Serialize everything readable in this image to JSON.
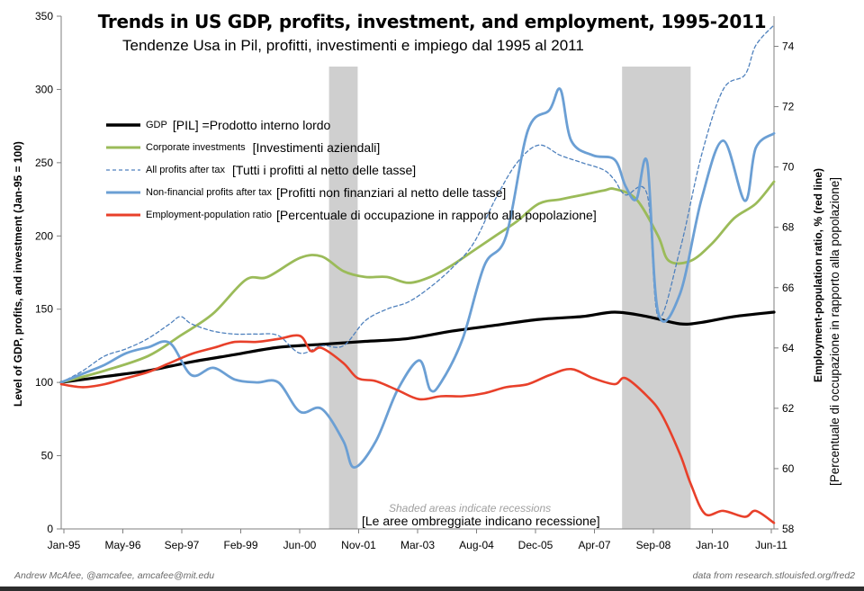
{
  "header": {
    "title": "Trends in US GDP, profits, investment, and employment, 1995-2011",
    "subtitle": "Tendenze Usa in Pil, profitti, investimenti e impiego dal 1995 al 2011"
  },
  "footer": {
    "credit": "Andrew McAfee, @amcafee, amcafee@mit.edu",
    "source": "data from research.stlouisfed.org/fred2"
  },
  "notes": {
    "recessions_en": "Shaded areas indicate recessions",
    "recessions_it": "[Le aree ombreggiate indicano recessione]"
  },
  "legend": [
    {
      "label": "GDP",
      "translation": "[PIL] =Prodotto interno lordo",
      "color": "#000000",
      "style": "solid-thick"
    },
    {
      "label": "Corporate investments",
      "translation": "[Investimenti aziendali]",
      "color": "#9bbb59",
      "style": "solid"
    },
    {
      "label": "All profits after tax",
      "translation": "[Tutti i profitti al netto delle tasse]",
      "color": "#4f81bd",
      "style": "dashed"
    },
    {
      "label": "Non-financial profits after tax",
      "translation": "[Profitti non finanziari al netto delle tasse]",
      "color": "#4f81bd",
      "style": "solid"
    },
    {
      "label": "Employment-population ratio",
      "translation": "[Percentuale di occupazione in rapporto alla popolazione]",
      "color": "#d9341f",
      "style": "solid"
    }
  ],
  "chart_data": {
    "type": "line",
    "title": "Trends in US GDP, profits, investment, and employment, 1995-2011",
    "subtitle": "Tendenze Usa in Pil, profitti, investimenti e impiego dal 1995 al 2011",
    "ylabel": "Level of GDP, profits, and investment (Jan-95 = 100)",
    "ylabel_right": "Employment-population ratio, % (red line)",
    "ylabel_right_it": "[Percentuale di occupazione in rapporto alla popolazione]",
    "ylim": [
      0,
      350
    ],
    "ylim_right": [
      58,
      75
    ],
    "xlim": [
      1995.0,
      2011.42
    ],
    "x_ticks": [
      "Jan-95",
      "May-96",
      "Sep-97",
      "Feb-99",
      "Jun-00",
      "Nov-01",
      "Mar-03",
      "Aug-04",
      "Dec-05",
      "Apr-07",
      "Sep-08",
      "Jan-10",
      "Jun-11"
    ],
    "y_ticks": [
      0,
      50,
      100,
      150,
      200,
      250,
      300,
      350
    ],
    "y_ticks_right": [
      58,
      60,
      62,
      64,
      66,
      68,
      70,
      72,
      74
    ],
    "recessions": [
      [
        2001.17,
        2001.83
      ],
      [
        2007.92,
        2009.5
      ]
    ],
    "grid": false,
    "legend_position": "upper-left",
    "series": [
      {
        "name": "GDP",
        "axis": "left",
        "color": "#000000",
        "width": 3.2,
        "style": "solid",
        "points": [
          [
            1995.0,
            100
          ],
          [
            1996.0,
            104
          ],
          [
            1997.0,
            108
          ],
          [
            1998.0,
            114
          ],
          [
            1999.0,
            119
          ],
          [
            2000.0,
            124
          ],
          [
            2001.0,
            126
          ],
          [
            2002.0,
            128
          ],
          [
            2003.0,
            130
          ],
          [
            2004.0,
            135
          ],
          [
            2005.0,
            139
          ],
          [
            2006.0,
            143
          ],
          [
            2007.0,
            145
          ],
          [
            2007.75,
            148
          ],
          [
            2008.5,
            145
          ],
          [
            2009.25,
            140
          ],
          [
            2009.75,
            141
          ],
          [
            2010.5,
            145
          ],
          [
            2011.42,
            148
          ]
        ]
      },
      {
        "name": "Corporate investments",
        "axis": "left",
        "color": "#9bbb59",
        "width": 2.8,
        "style": "solid",
        "points": [
          [
            1995.0,
            100
          ],
          [
            1996.0,
            108
          ],
          [
            1997.0,
            118
          ],
          [
            1997.75,
            132
          ],
          [
            1998.5,
            147
          ],
          [
            1999.25,
            170
          ],
          [
            1999.75,
            172
          ],
          [
            2000.5,
            185
          ],
          [
            2001.0,
            186
          ],
          [
            2001.5,
            176
          ],
          [
            2002.0,
            172
          ],
          [
            2002.5,
            172
          ],
          [
            2003.0,
            168
          ],
          [
            2003.5,
            172
          ],
          [
            2004.0,
            180
          ],
          [
            2004.5,
            190
          ],
          [
            2005.0,
            200
          ],
          [
            2005.5,
            210
          ],
          [
            2006.0,
            222
          ],
          [
            2006.5,
            225
          ],
          [
            2007.0,
            228
          ],
          [
            2007.5,
            231
          ],
          [
            2007.75,
            232
          ],
          [
            2008.25,
            225
          ],
          [
            2008.75,
            200
          ],
          [
            2009.0,
            183
          ],
          [
            2009.5,
            183
          ],
          [
            2010.0,
            195
          ],
          [
            2010.5,
            212
          ],
          [
            2011.0,
            222
          ],
          [
            2011.42,
            237
          ]
        ]
      },
      {
        "name": "All profits after tax",
        "axis": "left",
        "color": "#4f81bd",
        "width": 1.3,
        "style": "dashed",
        "points": [
          [
            1995.0,
            100
          ],
          [
            1995.5,
            108
          ],
          [
            1996.0,
            118
          ],
          [
            1996.5,
            123
          ],
          [
            1997.0,
            130
          ],
          [
            1997.5,
            140
          ],
          [
            1997.75,
            145
          ],
          [
            1998.0,
            140
          ],
          [
            1998.5,
            135
          ],
          [
            1999.0,
            133
          ],
          [
            1999.5,
            133
          ],
          [
            2000.0,
            132
          ],
          [
            2000.5,
            120
          ],
          [
            2001.0,
            125
          ],
          [
            2001.5,
            125
          ],
          [
            2002.0,
            142
          ],
          [
            2002.5,
            150
          ],
          [
            2003.0,
            155
          ],
          [
            2003.5,
            165
          ],
          [
            2004.0,
            178
          ],
          [
            2004.5,
            195
          ],
          [
            2005.0,
            225
          ],
          [
            2005.5,
            250
          ],
          [
            2006.0,
            262
          ],
          [
            2006.5,
            255
          ],
          [
            2007.0,
            250
          ],
          [
            2007.5,
            245
          ],
          [
            2007.75,
            238
          ],
          [
            2008.0,
            228
          ],
          [
            2008.5,
            228
          ],
          [
            2008.75,
            145
          ],
          [
            2009.25,
            190
          ],
          [
            2009.75,
            255
          ],
          [
            2010.25,
            300
          ],
          [
            2010.75,
            310
          ],
          [
            2011.0,
            330
          ],
          [
            2011.42,
            344
          ]
        ]
      },
      {
        "name": "Non-financial profits after tax",
        "axis": "left",
        "color": "#6b9fd4",
        "width": 2.8,
        "style": "solid",
        "points": [
          [
            1995.0,
            100
          ],
          [
            1995.5,
            106
          ],
          [
            1996.0,
            112
          ],
          [
            1996.5,
            120
          ],
          [
            1997.0,
            124
          ],
          [
            1997.5,
            127
          ],
          [
            1998.0,
            105
          ],
          [
            1998.5,
            110
          ],
          [
            1999.0,
            102
          ],
          [
            1999.5,
            100
          ],
          [
            2000.0,
            100
          ],
          [
            2000.5,
            80
          ],
          [
            2001.0,
            82
          ],
          [
            2001.5,
            60
          ],
          [
            2001.75,
            42
          ],
          [
            2002.25,
            60
          ],
          [
            2002.75,
            95
          ],
          [
            2003.25,
            115
          ],
          [
            2003.5,
            95
          ],
          [
            2003.75,
            100
          ],
          [
            2004.25,
            130
          ],
          [
            2004.75,
            180
          ],
          [
            2005.25,
            200
          ],
          [
            2005.75,
            272
          ],
          [
            2006.25,
            286
          ],
          [
            2006.5,
            300
          ],
          [
            2006.75,
            265
          ],
          [
            2007.25,
            255
          ],
          [
            2007.75,
            252
          ],
          [
            2008.0,
            234
          ],
          [
            2008.25,
            225
          ],
          [
            2008.5,
            250
          ],
          [
            2008.75,
            148
          ],
          [
            2009.25,
            160
          ],
          [
            2009.75,
            225
          ],
          [
            2010.25,
            265
          ],
          [
            2010.75,
            224
          ],
          [
            2011.0,
            260
          ],
          [
            2011.42,
            270
          ]
        ]
      },
      {
        "name": "Employment-population ratio",
        "axis": "right",
        "color": "#e8402a",
        "width": 2.6,
        "style": "solid",
        "points": [
          [
            1995.0,
            62.8
          ],
          [
            1995.5,
            62.7
          ],
          [
            1996.0,
            62.8
          ],
          [
            1996.5,
            63.0
          ],
          [
            1997.0,
            63.2
          ],
          [
            1997.5,
            63.5
          ],
          [
            1998.0,
            63.8
          ],
          [
            1998.5,
            64.0
          ],
          [
            1999.0,
            64.2
          ],
          [
            1999.5,
            64.2
          ],
          [
            2000.0,
            64.3
          ],
          [
            2000.5,
            64.4
          ],
          [
            2000.75,
            63.9
          ],
          [
            2001.0,
            64.0
          ],
          [
            2001.5,
            63.5
          ],
          [
            2001.83,
            63.0
          ],
          [
            2002.25,
            62.9
          ],
          [
            2002.75,
            62.6
          ],
          [
            2003.25,
            62.3
          ],
          [
            2003.75,
            62.4
          ],
          [
            2004.25,
            62.4
          ],
          [
            2004.75,
            62.5
          ],
          [
            2005.25,
            62.7
          ],
          [
            2005.75,
            62.8
          ],
          [
            2006.25,
            63.1
          ],
          [
            2006.75,
            63.3
          ],
          [
            2007.25,
            63.0
          ],
          [
            2007.75,
            62.8
          ],
          [
            2008.0,
            63.0
          ],
          [
            2008.5,
            62.4
          ],
          [
            2008.83,
            61.8
          ],
          [
            2009.25,
            60.5
          ],
          [
            2009.5,
            59.5
          ],
          [
            2009.83,
            58.5
          ],
          [
            2010.25,
            58.6
          ],
          [
            2010.75,
            58.4
          ],
          [
            2011.0,
            58.6
          ],
          [
            2011.42,
            58.2
          ]
        ]
      }
    ]
  }
}
